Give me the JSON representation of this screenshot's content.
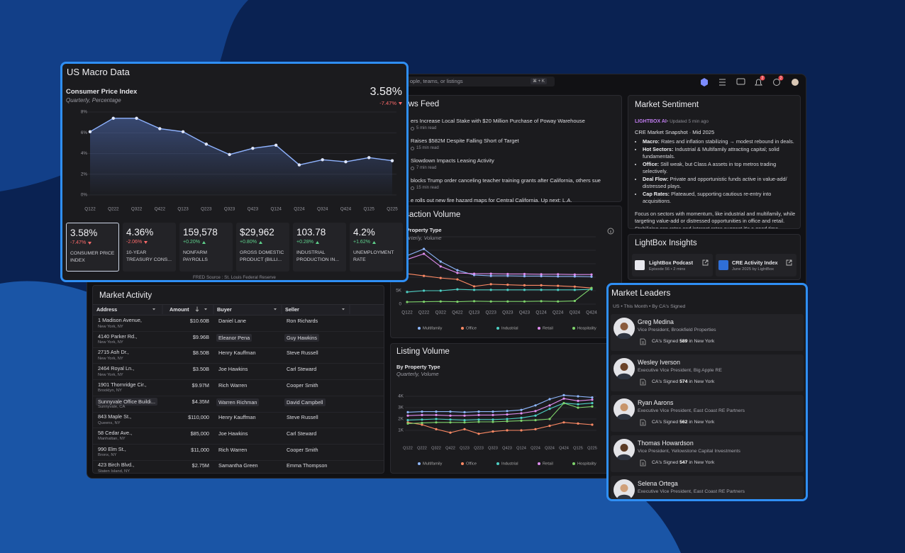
{
  "app": {
    "search_placeholder": "ople, teams, or listings",
    "shortcut": "⌘ + K",
    "notifications": 2,
    "messages": 2
  },
  "macro": {
    "title": "US Macro Data",
    "latest": "3.58%",
    "change": "-7.47%",
    "tiles": [
      {
        "value": "3.58%",
        "change": "-7.47%",
        "label": "CONSUMER PRICE INDEX"
      },
      {
        "value": "4.36%",
        "change": "-2.06%",
        "label": "10-YEAR TREASURY CONS..."
      },
      {
        "value": "159,578",
        "change": "+0.20%",
        "label": "NONFARM PAYROLLS"
      },
      {
        "value": "$29,962",
        "change": "+0.80%",
        "label": "GROSS DOMESTIC PRODUCT (BILLI..."
      },
      {
        "value": "103.78",
        "change": "+0.28%",
        "label": "INDUSTRIAL PRODUCTION IN..."
      },
      {
        "value": "4.2%",
        "change": "+1.62%",
        "label": "UNEMPLOYMENT RATE"
      }
    ],
    "source": "FRED Source :  St. Louis Federal Reserve"
  },
  "chart_data": [
    {
      "type": "area",
      "title": "Consumer Price Index",
      "subtitle": "Quarterly, Percentage",
      "categories": [
        "Q122",
        "Q222",
        "Q322",
        "Q422",
        "Q123",
        "Q223",
        "Q323",
        "Q423",
        "Q124",
        "Q224",
        "Q324",
        "Q424",
        "Q125",
        "Q225"
      ],
      "values": [
        6.1,
        7.4,
        7.4,
        6.4,
        6.1,
        4.9,
        3.9,
        4.5,
        4.8,
        2.9,
        3.4,
        3.2,
        3.6,
        3.3
      ],
      "color": "#8fb3ff",
      "ylim": [
        0,
        8
      ],
      "yticks": [
        {
          "value": 0,
          "label": "0%"
        },
        {
          "value": 2,
          "label": "2%"
        },
        {
          "value": 4,
          "label": "4%"
        },
        {
          "value": 6,
          "label": "6%"
        },
        {
          "value": 8,
          "label": "8%"
        }
      ],
      "grid": true
    },
    {
      "type": "line",
      "title": "Transaction Volume",
      "subtitle": "By Property Type",
      "subtitle2": "Quarterly, Volume",
      "categories": [
        "Q122",
        "Q222",
        "Q322",
        "Q422",
        "Q123",
        "Q223",
        "Q323",
        "Q423",
        "Q124",
        "Q224",
        "Q324",
        "Q424"
      ],
      "series": [
        {
          "name": "Multifamily",
          "color": "#8fb8ff",
          "values": [
            18000,
            20500,
            15800,
            12600,
            10800,
            10500,
            10500,
            10400,
            10400,
            10300,
            10300,
            10200
          ]
        },
        {
          "name": "Office",
          "color": "#ff8a65",
          "values": [
            11300,
            10500,
            9700,
            9200,
            6600,
            7400,
            7200,
            7000,
            7000,
            6800,
            6500,
            6000
          ]
        },
        {
          "name": "Industrial",
          "color": "#4dd0c4",
          "values": [
            4500,
            5000,
            5000,
            5500,
            5300,
            5300,
            5300,
            5300,
            5300,
            5300,
            5300,
            5500
          ]
        },
        {
          "name": "Retail",
          "color": "#e08ef0",
          "values": [
            16600,
            18700,
            14000,
            11600,
            11300,
            11300,
            11200,
            11200,
            11100,
            11100,
            11000,
            11000
          ]
        },
        {
          "name": "Hospitality",
          "color": "#7ed36b",
          "values": [
            800,
            900,
            1000,
            900,
            1100,
            1000,
            1000,
            1000,
            1100,
            1000,
            1200,
            6000
          ]
        }
      ],
      "ylim": [
        0,
        25000
      ],
      "yticks": [
        0,
        {
          "value": 5000,
          "label": "5K"
        },
        {
          "value": 10000,
          "label": "10K"
        },
        {
          "value": 15000,
          "label": "15K"
        },
        {
          "value": 20000,
          "label": "20K"
        },
        {
          "value": 25000,
          "label": "25K"
        }
      ],
      "grid": true,
      "legend": "bottom"
    },
    {
      "type": "line",
      "title": "Listing Volume",
      "subtitle": "By Property Type",
      "subtitle2": "Quarterly, Volume",
      "categories": [
        "Q122",
        "Q222",
        "Q322",
        "Q422",
        "Q123",
        "Q223",
        "Q323",
        "Q423",
        "Q124",
        "Q224",
        "Q324",
        "Q424",
        "Q125",
        "Q225"
      ],
      "series": [
        {
          "name": "Multifamily",
          "color": "#8fb8ff",
          "values": [
            2600,
            2650,
            2650,
            2650,
            2600,
            2650,
            2650,
            2700,
            2800,
            3200,
            3750,
            4100,
            4000,
            3900
          ]
        },
        {
          "name": "Office",
          "color": "#ff8a65",
          "values": [
            1700,
            1500,
            1100,
            800,
            1100,
            700,
            900,
            1000,
            1000,
            1100,
            1400,
            1700,
            1600,
            1500
          ]
        },
        {
          "name": "Industrial",
          "color": "#4dd0c4",
          "values": [
            1900,
            1950,
            2000,
            1950,
            1900,
            1950,
            1950,
            2000,
            2100,
            2300,
            2900,
            3400,
            3300,
            3400
          ]
        },
        {
          "name": "Retail",
          "color": "#e08ef0",
          "values": [
            2300,
            2350,
            2350,
            2300,
            2300,
            2350,
            2350,
            2400,
            2500,
            2700,
            3200,
            3800,
            3600,
            3700
          ]
        },
        {
          "name": "Hospitality",
          "color": "#7ed36b",
          "values": [
            1600,
            1650,
            1700,
            1700,
            1700,
            1750,
            1750,
            1800,
            1850,
            1900,
            2000,
            3400,
            3000,
            3100
          ]
        }
      ],
      "ylim": [
        0,
        5000
      ],
      "yticks": [
        {
          "value": 1000,
          "label": "1K"
        },
        {
          "value": 2000,
          "label": "2K"
        },
        {
          "value": 3000,
          "label": "3K"
        },
        {
          "value": 4000,
          "label": "4K"
        }
      ],
      "grid": true,
      "legend": "bottom"
    }
  ],
  "news": {
    "title": "News Feed",
    "items": [
      {
        "headline": "ers Increase Local Stake with $20 Million Purchase of Poway Warehouse",
        "read_time": "5 min read"
      },
      {
        "headline": "Raises $582M Despite Falling Short of Target",
        "read_time": "15 min read"
      },
      {
        "headline": "Slowdown Impacts Leasing Activity",
        "read_time": "7 min read"
      },
      {
        "headline": "blocks Trump order canceling teacher training grants after California, others sue",
        "read_time": "15 min read"
      },
      {
        "headline": "e rolls out new fire hazard maps for Central California. Up next: L.A."
      }
    ]
  },
  "market_activity": {
    "title": "Market Activity",
    "columns": [
      "Address",
      "Amount",
      "Buyer",
      "Seller"
    ],
    "rows": [
      {
        "address": "1 Madison Avenue,",
        "city": "New York, NY",
        "amount": "$10.60B",
        "buyer": "Daniel Lane",
        "seller": "Ron Richards"
      },
      {
        "address": "4140 Parker Rd.,",
        "city": "New York, NY",
        "amount": "$9.96B",
        "buyer": "Eleanor Pena",
        "seller": "Guy Hawkins"
      },
      {
        "address": "2715 Ash Dr.,",
        "city": "New York, NY",
        "amount": "$8.50B",
        "buyer": "Henry Kauffman",
        "seller": "Steve Russell"
      },
      {
        "address": "2464 Royal Ln.,",
        "city": "New York, NY",
        "amount": "$3.50B",
        "buyer": "Joe Hawkins",
        "seller": "Carl Steward"
      },
      {
        "address": "1901 Thornridge Cir.,",
        "city": "Brooklyn, NY",
        "amount": "$9.97M",
        "buyer": "Rich Warren",
        "seller": "Cooper Smith"
      },
      {
        "address": "Sunnyvale Office Buildi...",
        "city": "Sunnyvale, CA",
        "amount": "$4.35M",
        "buyer": "Warren Richman",
        "seller": "David  Campbell"
      },
      {
        "address": "843 Maple St.,",
        "city": "Queens, NY",
        "amount": "$110,000",
        "buyer": "Henry Kauffman",
        "seller": "Steve Russell"
      },
      {
        "address": "58 Cedar Ave.,",
        "city": "Manhattan, NY",
        "amount": "$85,000",
        "buyer": "Joe Hawkins",
        "seller": "Carl Steward"
      },
      {
        "address": "990 Elm St.,",
        "city": "Bronx, NY",
        "amount": "$11,000",
        "buyer": "Rich Warren",
        "seller": "Cooper Smith"
      },
      {
        "address": "423 Birch Blvd.,",
        "city": "Staten Island, NY",
        "amount": "$2.75M",
        "buyer": "Samantha Green",
        "seller": "Emma Thompson"
      }
    ]
  },
  "sentiment": {
    "title": "Market Sentiment",
    "source": "LIGHTBOX AI",
    "updated": "•  Updated 5 min ago",
    "heading": "CRE Market Snapshot · Mid 2025",
    "bullets": [
      {
        "label": "Macro:",
        "text": "Rates and inflation stabilizing  → modest rebound in deals."
      },
      {
        "label": "Hot Sectors:",
        "text": "Industrial & Multifamily attracting capital; solid fundamentals."
      },
      {
        "label": "Office:",
        "text": "Still weak, but Class A assets in top metros trading selectively."
      },
      {
        "label": "Deal Flow:",
        "text": "Private and opportunistic funds active in value-add/ distressed plays."
      },
      {
        "label": "Cap Rates:",
        "text": "Plateaued, supporting cautious re-entry into acquisitions."
      }
    ],
    "summary": "Focus on sectors with momentum, like industrial and multifamily, while targeting value-add or distressed opportunities in office and retail. Stabilizing cap rates and interest rates suggest it's a good time"
  },
  "insights": {
    "title": "LightBox Insights",
    "items": [
      {
        "title": "LightBox Podcast",
        "meta": "Episode 56 • 2 mins"
      },
      {
        "title": "CRE Activity Index",
        "meta": "June 2025 by LightBox"
      }
    ]
  },
  "leaders": {
    "title": "Market Leaders",
    "filter": "US  •  This Month  •  By CA's Signed",
    "people": [
      {
        "name": "Greg Medina",
        "role": "Vice President, Brookfield Properties",
        "signed": "CA's Signed",
        "count": "589",
        "place": "in New York"
      },
      {
        "name": "Wesley Iverson",
        "role": "Executive Vice President, Big Apple RE",
        "signed": "CA's Signed",
        "count": "574",
        "place": "in New York"
      },
      {
        "name": "Ryan Aarons",
        "role": "Executive Vice President, East Coast RE Partners",
        "signed": "CA's Signed",
        "count": "562",
        "place": "in New York"
      },
      {
        "name": "Thomas Howardson",
        "role": "Vice President,  Yellowstone Capital Investments",
        "signed": "CA's Signed",
        "count": "547",
        "place": "in New York"
      },
      {
        "name": "Selena Ortega",
        "role": "Executive Vice President, East Coast RE Partners"
      }
    ]
  }
}
